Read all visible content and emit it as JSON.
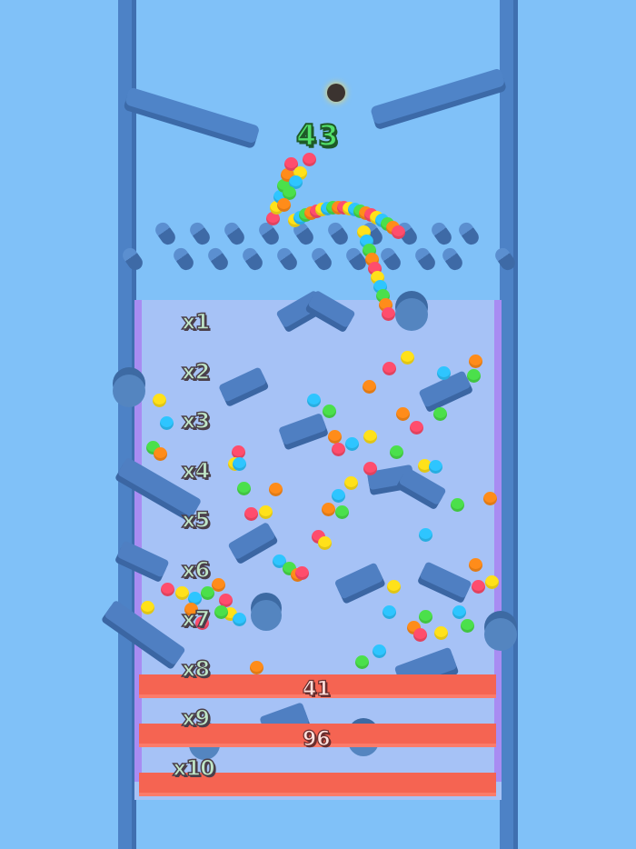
{
  "game": {
    "ball_count": "43",
    "multipliers": [
      "x1",
      "x2",
      "x3",
      "x4",
      "x5",
      "x6",
      "x7",
      "x8",
      "x9",
      "x10"
    ],
    "barriers": [
      {
        "hits_remaining": "41"
      },
      {
        "hits_remaining": "96"
      },
      {
        "hits_remaining": ""
      }
    ]
  },
  "colors": {
    "background": "#80c1f8",
    "board": "#a6c2f6",
    "obstacle": "#4f7fc2",
    "barrier": "#f56452",
    "rail": "#a88cf2",
    "count_text": "#52e06a",
    "ball_palette": [
      "#ff4d6d",
      "#ffe11a",
      "#2ec5ff",
      "#4be04b",
      "#ff8c1a"
    ]
  }
}
